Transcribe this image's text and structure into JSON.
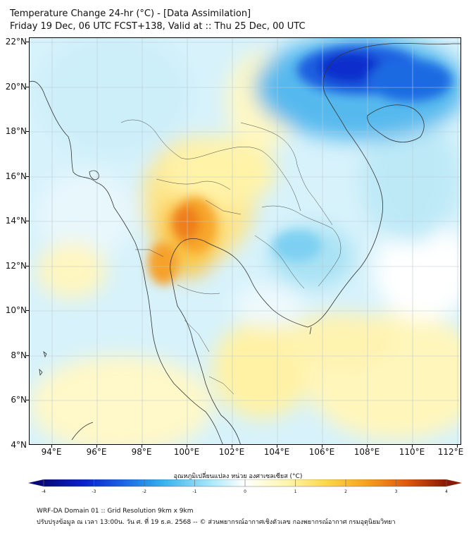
{
  "title": {
    "line1": "Temperature Change 24-hr (°C) - [Data Assimilation]",
    "line2": "Friday 19 Dec, 06 UTC FCST+138, Valid at :: Thu 25 Dec, 00 UTC"
  },
  "map": {
    "lat_labels": [
      "22°N",
      "20°N",
      "18°N",
      "16°N",
      "14°N",
      "12°N",
      "10°N",
      "8°N",
      "6°N",
      "4°N"
    ],
    "lon_labels": [
      "94°E",
      "96°E",
      "98°E",
      "100°E",
      "102°E",
      "104°E",
      "106°E",
      "108°E",
      "110°E",
      "112°E"
    ],
    "lat_range": [
      4,
      22
    ],
    "lon_range": [
      93,
      112
    ]
  },
  "colorbar": {
    "label": "อุณหภูมิเปลี่ยนแปลง หน่วย องศาเซลเซียส (°C)",
    "ticks": [
      "-4",
      "-3",
      "-2",
      "-1",
      "0",
      "1",
      "2",
      "3",
      "4"
    ],
    "range": [
      -4,
      4
    ],
    "colors": [
      "#08087a",
      "#0a22cc",
      "#1a66e6",
      "#38b4ee",
      "#aeeafa",
      "#ffffff",
      "#fff6b0",
      "#fcd84a",
      "#f7a21e",
      "#e05a0c",
      "#8a1a06"
    ]
  },
  "footer": {
    "line1": "WRF-DA Domain 01 :: Grid Resolution 9km x 9km",
    "line2": "ปรับปรุงข้อมูล ณ เวลา 13:00น. วัน ศ. ที่ 19 ธ.ค. 2568 -- © ส่วนพยากรณ์อากาศเชิงตัวเลข กองพยากรณ์อากาศ กรมอุตุนิยมวิทยา"
  }
}
